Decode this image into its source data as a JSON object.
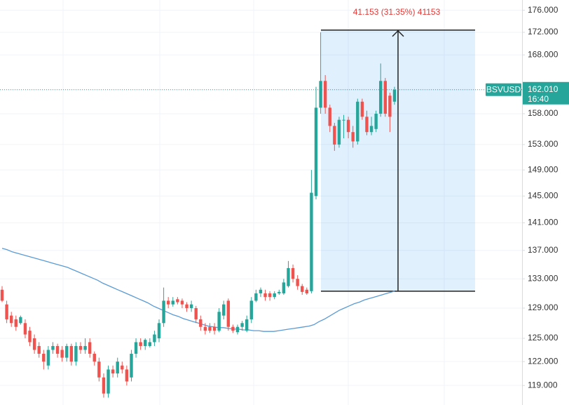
{
  "chart_data": {
    "type": "candlestick",
    "symbol": "BSVUSD",
    "log_scale": true,
    "grid": true,
    "up_color": "#26a69a",
    "down_color": "#ef5350",
    "ylim": [
      116.6,
      177.9
    ],
    "yticks": [
      {
        "value": 119,
        "label": "119.000"
      },
      {
        "value": 122,
        "label": "122.000"
      },
      {
        "value": 125,
        "label": "125.000"
      },
      {
        "value": 129,
        "label": "129.000"
      },
      {
        "value": 133,
        "label": "133.000"
      },
      {
        "value": 137,
        "label": "137.000"
      },
      {
        "value": 141,
        "label": "141.000"
      },
      {
        "value": 145,
        "label": "145.000"
      },
      {
        "value": 149,
        "label": "149.000"
      },
      {
        "value": 153,
        "label": "153.000"
      },
      {
        "value": 158,
        "label": "158.000"
      },
      {
        "value": 162,
        "label": "162.000"
      },
      {
        "value": 168,
        "label": "168.000"
      },
      {
        "value": 172,
        "label": "172.000"
      },
      {
        "value": 176,
        "label": "176.000"
      }
    ],
    "open": [
      131.5,
      129.5,
      128,
      127.5,
      127,
      127,
      126,
      125,
      124,
      123,
      121.5,
      123.5,
      124,
      123.5,
      122.5,
      124,
      122,
      124,
      123.5,
      124.5,
      123,
      122,
      120,
      118,
      121,
      120.5,
      121.5,
      121,
      120,
      123,
      124.5,
      124,
      124,
      124.5,
      125,
      127,
      130,
      129.5,
      130.2,
      130,
      129.5,
      129,
      129,
      127.5,
      126.5,
      126.5,
      126.5,
      126,
      128,
      130,
      126.5,
      125.8,
      126.5,
      126,
      127.5,
      130,
      131,
      131,
      131,
      130.5,
      131,
      131,
      132,
      134.5,
      133,
      132,
      131.5,
      131.3,
      145,
      159,
      163.5,
      159,
      156,
      153,
      157,
      157,
      155,
      153.5,
      160,
      157.5,
      155,
      155.5,
      158,
      163.5,
      161,
      160
    ],
    "high": [
      132,
      130,
      128.5,
      128,
      128,
      127.5,
      126.5,
      125.5,
      124.5,
      123.5,
      124,
      124.5,
      124.3,
      124,
      124.3,
      124.3,
      124.5,
      124.5,
      125,
      125,
      123.3,
      122.5,
      120.5,
      121.5,
      121.5,
      122.5,
      122,
      121.5,
      123.5,
      125,
      125,
      125,
      125,
      126,
      127.5,
      131.8,
      130.5,
      130.5,
      130.5,
      130.3,
      129.8,
      130,
      129.3,
      128,
      127,
      127,
      127,
      129,
      130,
      130.3,
      126.8,
      126.8,
      127.3,
      128,
      130.5,
      131.5,
      131.8,
      131.5,
      131.3,
      131.3,
      131.5,
      133,
      135.5,
      135,
      133.5,
      132.3,
      131.8,
      149,
      162.5,
      172,
      164.5,
      159.5,
      156.5,
      157.5,
      157.8,
      157.5,
      156,
      160.5,
      160.5,
      158.5,
      157.5,
      158.5,
      166.5,
      164,
      161.5,
      162.5
    ],
    "low": [
      129.8,
      127,
      126.5,
      126,
      126.8,
      125,
      124,
      123,
      122.5,
      121,
      121,
      123,
      122.5,
      122,
      122,
      121.5,
      121.5,
      123,
      123,
      122.5,
      121.5,
      119.5,
      117.5,
      117.5,
      120,
      120,
      120.5,
      119,
      119.5,
      122.5,
      123.5,
      123.5,
      123.8,
      124,
      124.5,
      126.5,
      129,
      129.2,
      129.5,
      129,
      128.5,
      128.5,
      127,
      126,
      125.5,
      125.7,
      125.5,
      125.8,
      127.5,
      126,
      125.7,
      125.5,
      126,
      125.8,
      127,
      129.8,
      130.5,
      130,
      130,
      130.2,
      130.8,
      130.8,
      131.8,
      132.5,
      131.5,
      130.8,
      130.8,
      131,
      144.5,
      158,
      158,
      155,
      152,
      152.5,
      154,
      154,
      152.5,
      153,
      157,
      154.5,
      154.5,
      155,
      157.5,
      157.5,
      155,
      159.5
    ],
    "close": [
      130,
      127.5,
      127,
      126.5,
      127.8,
      125.5,
      124.5,
      123.5,
      123,
      122,
      123.5,
      124,
      123,
      122.5,
      124,
      122,
      124,
      123.5,
      124,
      123,
      122,
      120,
      118,
      121,
      120.5,
      122,
      121,
      119.5,
      123,
      124.5,
      124,
      124.8,
      124.5,
      125.5,
      127,
      130,
      129.5,
      130,
      129.8,
      129.5,
      129,
      129.5,
      127.5,
      126.5,
      126,
      126,
      126,
      128.5,
      129.5,
      126.5,
      126,
      126.5,
      127,
      127.5,
      130,
      131,
      131.5,
      130.5,
      130.5,
      131,
      131.2,
      132.5,
      134.5,
      133,
      132,
      131.2,
      131,
      145.5,
      159,
      163.5,
      159,
      156,
      153,
      157,
      157,
      155,
      153.5,
      160,
      157.5,
      155,
      156,
      158,
      163.5,
      158,
      157.5,
      162.01
    ],
    "ma": {
      "color": "#5b9bd5",
      "values": [
        137.3,
        137.1,
        136.8,
        136.6,
        136.4,
        136.2,
        136.0,
        135.8,
        135.6,
        135.4,
        135.2,
        135.0,
        134.8,
        134.6,
        134.3,
        134.0,
        133.7,
        133.4,
        133.1,
        132.8,
        132.4,
        132.1,
        131.8,
        131.5,
        131.2,
        130.9,
        130.6,
        130.3,
        130.0,
        129.7,
        129.3,
        129.0,
        128.7,
        128.4,
        128.1,
        127.9,
        127.6,
        127.4,
        127.2,
        127.0,
        126.8,
        126.6,
        126.5,
        126.4,
        126.4,
        126.3,
        126.2,
        126.2,
        126.1,
        126.1,
        126.0,
        126.0,
        125.9,
        125.9,
        125.9,
        126.0,
        126.1,
        126.2,
        126.3,
        126.4,
        126.5,
        126.6,
        126.8,
        127.2,
        127.5,
        127.9,
        128.3,
        128.7,
        129.0,
        129.3,
        129.6,
        129.8,
        130.1,
        130.3,
        130.5,
        130.7,
        130.9,
        131.1,
        131.3
      ]
    },
    "measure": {
      "from": 131.3,
      "to": 172.4,
      "label": "41.153 (31.35%) 41153",
      "color": "#e53935"
    },
    "last_price": {
      "value": 162.01,
      "label": "162.010",
      "countdown": "16:40"
    }
  }
}
